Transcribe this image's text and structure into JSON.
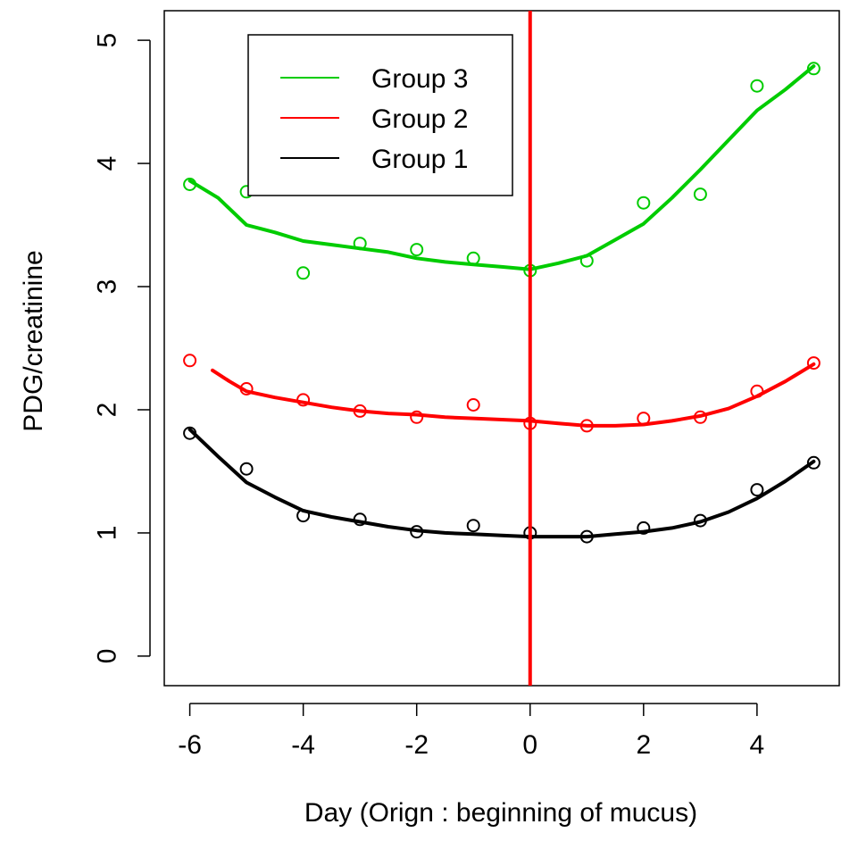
{
  "chart_data": {
    "type": "scatter",
    "xlabel": "Day (Orign : beginning of mucus)",
    "ylabel": "PDG/creatinine",
    "xlim": [
      -6.45,
      5.45
    ],
    "ylim": [
      -0.24,
      5.24
    ],
    "xticks": [
      -6,
      -4,
      -2,
      0,
      2,
      4
    ],
    "yticks": [
      0,
      1,
      2,
      3,
      4,
      5
    ],
    "grid": false,
    "legend_position": "top-center",
    "reference_line": {
      "x": 0,
      "color": "#ff0000"
    },
    "series": [
      {
        "name": "Group 3",
        "color": "#00cc00",
        "points_x": [
          -6,
          -5,
          -4,
          -3,
          -2,
          -1,
          0,
          1,
          2,
          3,
          4,
          5
        ],
        "points_y": [
          3.83,
          3.77,
          3.11,
          3.35,
          3.3,
          3.23,
          3.13,
          3.21,
          3.68,
          3.75,
          4.63,
          4.77
        ],
        "smooth_x": [
          -6,
          -5.5,
          -5,
          -4.5,
          -4,
          -3.5,
          -3,
          -2.5,
          -2,
          -1.5,
          -1,
          -0.5,
          0,
          0.5,
          1,
          1.5,
          2,
          2.5,
          3,
          3.5,
          4,
          4.5,
          5
        ],
        "smooth_y": [
          3.86,
          3.72,
          3.5,
          3.44,
          3.37,
          3.34,
          3.31,
          3.28,
          3.23,
          3.2,
          3.18,
          3.16,
          3.14,
          3.19,
          3.25,
          3.38,
          3.51,
          3.72,
          3.95,
          4.19,
          4.43,
          4.6,
          4.79
        ]
      },
      {
        "name": "Group 2",
        "color": "#ff0000",
        "points_x": [
          -6,
          -5,
          -4,
          -3,
          -2,
          -1,
          0,
          1,
          2,
          3,
          4,
          5
        ],
        "points_y": [
          2.4,
          2.17,
          2.08,
          1.99,
          1.94,
          2.04,
          1.89,
          1.87,
          1.93,
          1.94,
          2.15,
          2.38
        ],
        "smooth_x": [
          -5.6,
          -5.3,
          -5,
          -4.5,
          -4,
          -3.5,
          -3,
          -2.5,
          -2,
          -1.5,
          -1,
          -0.5,
          0,
          0.5,
          1,
          1.5,
          2,
          2.5,
          3,
          3.5,
          4,
          4.5,
          5
        ],
        "smooth_y": [
          2.32,
          2.23,
          2.15,
          2.1,
          2.06,
          2.02,
          1.99,
          1.97,
          1.96,
          1.94,
          1.93,
          1.92,
          1.91,
          1.89,
          1.87,
          1.87,
          1.88,
          1.91,
          1.95,
          2.01,
          2.11,
          2.23,
          2.37
        ]
      },
      {
        "name": "Group 1",
        "color": "#000000",
        "points_x": [
          -6,
          -5,
          -4,
          -3,
          -2,
          -1,
          0,
          1,
          2,
          3,
          4,
          5
        ],
        "points_y": [
          1.81,
          1.52,
          1.14,
          1.11,
          1.01,
          1.06,
          1.0,
          0.97,
          1.04,
          1.1,
          1.35,
          1.57
        ],
        "smooth_x": [
          -6,
          -5.5,
          -5,
          -4.5,
          -4,
          -3.5,
          -3,
          -2.5,
          -2,
          -1.5,
          -1,
          -0.5,
          0,
          0.5,
          1,
          1.5,
          2,
          2.5,
          3,
          3.5,
          4,
          4.5,
          5
        ],
        "smooth_y": [
          1.84,
          1.62,
          1.41,
          1.29,
          1.18,
          1.13,
          1.09,
          1.05,
          1.02,
          1.0,
          0.99,
          0.98,
          0.97,
          0.97,
          0.97,
          0.99,
          1.01,
          1.04,
          1.09,
          1.17,
          1.28,
          1.42,
          1.58
        ]
      }
    ],
    "legend_order": [
      "Group 3",
      "Group 2",
      "Group 1"
    ]
  }
}
